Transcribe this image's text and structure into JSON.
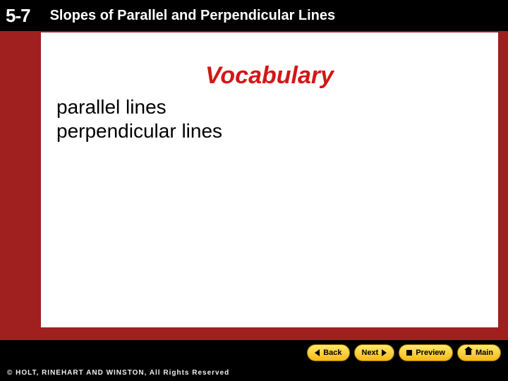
{
  "header": {
    "lesson_number": "5-7",
    "title": "Slopes of Parallel and Perpendicular Lines"
  },
  "content": {
    "heading": "Vocabulary",
    "items": [
      "parallel lines",
      "perpendicular lines"
    ]
  },
  "nav": {
    "back": "Back",
    "next": "Next",
    "preview": "Preview",
    "main": "Main"
  },
  "footer": {
    "copyright": "© HOLT, RINEHART AND WINSTON, All Rights Reserved"
  },
  "colors": {
    "background": "#a02020",
    "header_bg": "#000000",
    "content_bg": "#ffffff",
    "heading_color": "#d41616",
    "nav_btn_top": "#ffe96a",
    "nav_btn_bottom": "#f7b917"
  }
}
